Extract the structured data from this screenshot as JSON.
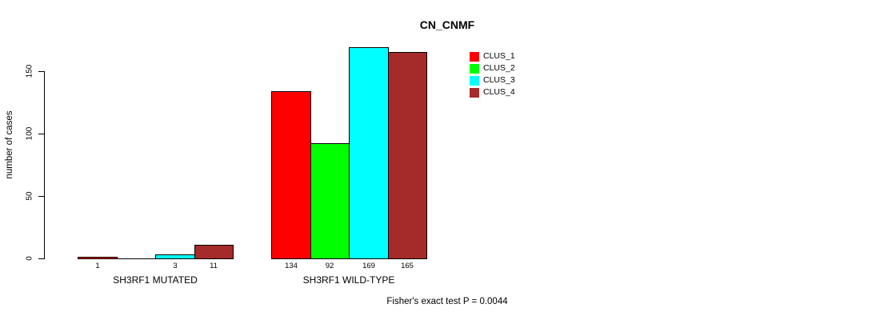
{
  "chart_data": {
    "type": "bar",
    "title": "CN_CNMF",
    "ylabel": "number of cases",
    "xlabel": "",
    "ylim": [
      0,
      170
    ],
    "yticks": [
      0,
      50,
      100,
      150
    ],
    "grid": false,
    "legend_position": "top-right",
    "series": [
      {
        "name": "CLUS_1",
        "color": "#ff0000"
      },
      {
        "name": "CLUS_2",
        "color": "#00ff00"
      },
      {
        "name": "CLUS_3",
        "color": "#00ffff"
      },
      {
        "name": "CLUS_4",
        "color": "#a52a2a"
      }
    ],
    "groups": [
      {
        "label": "SH3RF1 MUTATED",
        "values": [
          1,
          0,
          3,
          11
        ],
        "bar_labels": [
          "1",
          "",
          "3",
          "11"
        ]
      },
      {
        "label": "SH3RF1 WILD-TYPE",
        "values": [
          134,
          92,
          169,
          165
        ],
        "bar_labels": [
          "134",
          "92",
          "169",
          "165"
        ]
      }
    ],
    "annotation": "Fisher's exact test P = 0.0044"
  }
}
